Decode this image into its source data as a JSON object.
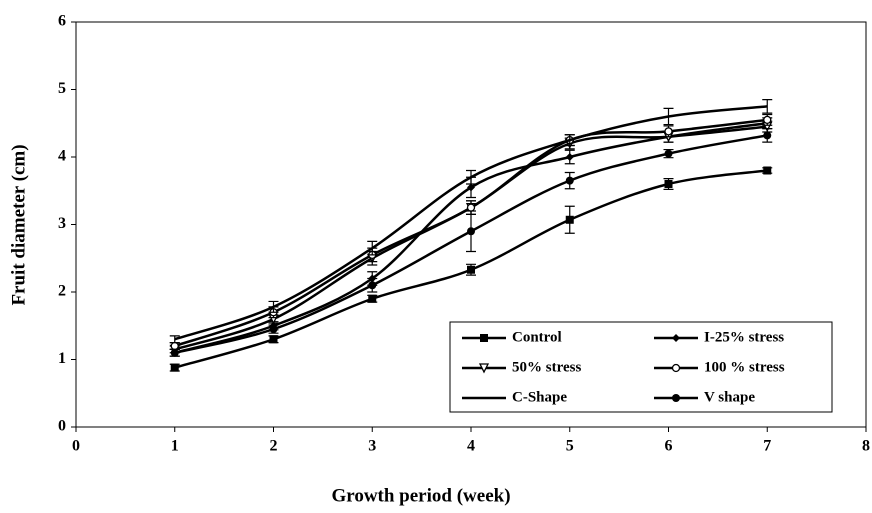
{
  "chart_data": {
    "type": "line",
    "x_label": "Growth period (week)",
    "y_label": "Fruit diameter (cm)",
    "x": [
      1,
      2,
      3,
      4,
      5,
      6,
      7
    ],
    "xlim": [
      0,
      8
    ],
    "xticks": [
      0,
      1,
      2,
      3,
      4,
      5,
      6,
      7,
      8
    ],
    "ylim": [
      0,
      6
    ],
    "yticks": [
      0,
      1,
      2,
      3,
      4,
      5,
      6
    ],
    "grid": false,
    "legend": "lower right",
    "series": [
      {
        "name": "Control",
        "color": "#000000",
        "marker": "square",
        "values": [
          0.88,
          1.3,
          1.9,
          2.33,
          3.07,
          3.6,
          3.8
        ],
        "errors": [
          0.05,
          0.05,
          0.05,
          0.08,
          0.2,
          0.08,
          0.04
        ]
      },
      {
        "name": "I-25% stress",
        "color": "#000000",
        "marker": "diamond",
        "values": [
          1.1,
          1.5,
          2.2,
          3.55,
          4.0,
          4.3,
          4.5
        ],
        "errors": [
          0.05,
          0.06,
          0.1,
          0.15,
          0.1,
          0.08,
          0.08
        ]
      },
      {
        "name": "50% stress",
        "color": "#000000",
        "marker": "triangle",
        "values": [
          1.15,
          1.6,
          2.5,
          3.25,
          4.2,
          4.3,
          4.45
        ],
        "errors": [
          0.05,
          0.06,
          0.1,
          0.1,
          0.08,
          0.08,
          0.08
        ]
      },
      {
        "name": "100 % stress",
        "color": "#000000",
        "marker": "circle-open",
        "values": [
          1.2,
          1.7,
          2.55,
          3.25,
          4.25,
          4.38,
          4.55
        ],
        "errors": [
          0.05,
          0.08,
          0.1,
          0.1,
          0.08,
          0.08,
          0.08
        ]
      },
      {
        "name": "C-Shape",
        "color": "#000000",
        "marker": "none",
        "values": [
          1.3,
          1.78,
          2.65,
          3.7,
          4.25,
          4.6,
          4.75
        ],
        "errors": [
          0.05,
          0.08,
          0.1,
          0.1,
          0.08,
          0.12,
          0.1
        ]
      },
      {
        "name": "V shape",
        "color": "#000000",
        "marker": "circle",
        "values": [
          1.1,
          1.45,
          2.1,
          2.9,
          3.65,
          4.05,
          4.32
        ],
        "errors": [
          0.05,
          0.06,
          0.1,
          0.3,
          0.12,
          0.06,
          0.1
        ]
      }
    ]
  }
}
